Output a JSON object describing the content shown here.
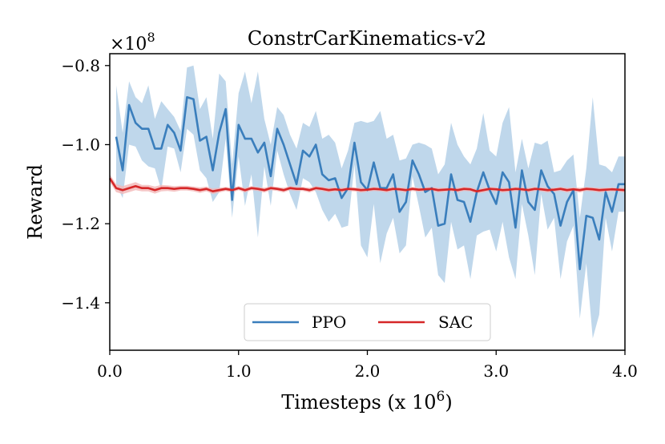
{
  "chart_data": {
    "type": "line",
    "title": "ConstrCarKinematics-v2",
    "xlabel": "Timesteps (x 10",
    "xlabel_sup": "6",
    "xlabel_close": ")",
    "ylabel": "Reward",
    "y_multiplier": "×10",
    "y_multiplier_exp": "8",
    "xlim": [
      0.0,
      4.0
    ],
    "ylim": [
      -1.52,
      -0.77
    ],
    "xticks": [
      0.0,
      1.0,
      2.0,
      3.0,
      4.0
    ],
    "xtick_labels": [
      "0.0",
      "1.0",
      "2.0",
      "3.0",
      "4.0"
    ],
    "yticks": [
      -0.8,
      -1.0,
      -1.2,
      -1.4
    ],
    "ytick_labels": [
      "−0.8",
      "−1.0",
      "−1.2",
      "−1.4"
    ],
    "grid": false,
    "legend_position": "bottom-center",
    "series": [
      {
        "name": "PPO",
        "color": "#3a7ebc",
        "band_color": "#bcd5ea",
        "x": [
          0.05,
          0.1,
          0.15,
          0.2,
          0.25,
          0.3,
          0.35,
          0.4,
          0.45,
          0.5,
          0.55,
          0.6,
          0.65,
          0.7,
          0.75,
          0.8,
          0.85,
          0.9,
          0.95,
          1.0,
          1.05,
          1.1,
          1.15,
          1.2,
          1.25,
          1.3,
          1.35,
          1.4,
          1.45,
          1.5,
          1.55,
          1.6,
          1.65,
          1.7,
          1.75,
          1.8,
          1.85,
          1.9,
          1.95,
          2.0,
          2.05,
          2.1,
          2.15,
          2.2,
          2.25,
          2.3,
          2.35,
          2.4,
          2.45,
          2.5,
          2.55,
          2.6,
          2.65,
          2.7,
          2.75,
          2.8,
          2.85,
          2.9,
          2.95,
          3.0,
          3.05,
          3.1,
          3.15,
          3.2,
          3.25,
          3.3,
          3.35,
          3.4,
          3.45,
          3.5,
          3.55,
          3.6,
          3.65,
          3.7,
          3.75,
          3.8,
          3.85,
          3.9,
          3.95,
          4.0
        ],
        "y": [
          -0.98,
          -1.065,
          -0.9,
          -0.945,
          -0.96,
          -0.96,
          -1.01,
          -1.01,
          -0.95,
          -0.97,
          -1.015,
          -0.88,
          -0.885,
          -0.99,
          -0.98,
          -1.065,
          -0.97,
          -0.91,
          -1.14,
          -0.95,
          -0.985,
          -0.985,
          -1.02,
          -0.995,
          -1.08,
          -0.96,
          -1.0,
          -1.05,
          -1.1,
          -1.015,
          -1.03,
          -1.0,
          -1.075,
          -1.09,
          -1.085,
          -1.135,
          -1.11,
          -0.995,
          -1.095,
          -1.115,
          -1.045,
          -1.11,
          -1.11,
          -1.075,
          -1.17,
          -1.145,
          -1.04,
          -1.075,
          -1.12,
          -1.11,
          -1.205,
          -1.2,
          -1.075,
          -1.14,
          -1.145,
          -1.195,
          -1.12,
          -1.07,
          -1.115,
          -1.15,
          -1.07,
          -1.095,
          -1.21,
          -1.065,
          -1.145,
          -1.165,
          -1.065,
          -1.105,
          -1.125,
          -1.205,
          -1.145,
          -1.115,
          -1.315,
          -1.18,
          -1.185,
          -1.24,
          -1.12,
          -1.17,
          -1.1,
          -1.1
        ],
        "upper": [
          -0.85,
          -0.97,
          -0.84,
          -0.88,
          -0.895,
          -0.85,
          -0.935,
          -0.89,
          -0.91,
          -0.93,
          -0.965,
          -0.805,
          -0.8,
          -0.91,
          -0.88,
          -0.985,
          -0.82,
          -0.84,
          -1.05,
          -0.87,
          -0.815,
          -0.895,
          -0.815,
          -0.935,
          -1.0,
          -0.905,
          -0.925,
          -0.975,
          -1.01,
          -0.945,
          -0.955,
          -0.915,
          -0.985,
          -0.975,
          -0.995,
          -1.06,
          -1.015,
          -0.945,
          -0.94,
          -0.945,
          -0.94,
          -0.915,
          -0.985,
          -0.975,
          -1.04,
          -1.035,
          -1.0,
          -0.995,
          -1.0,
          -1.01,
          -1.075,
          -1.05,
          -0.945,
          -1.0,
          -1.03,
          -1.05,
          -1.01,
          -0.92,
          -1.015,
          -1.03,
          -0.945,
          -0.905,
          -1.07,
          -0.985,
          -1.06,
          -0.995,
          -1.0,
          -0.99,
          -1.07,
          -1.065,
          -1.04,
          -1.025,
          -1.185,
          -1.06,
          -0.88,
          -1.05,
          -1.055,
          -1.07,
          -1.03,
          -1.03
        ],
        "lower": [
          -1.1,
          -1.135,
          -1.0,
          -1.005,
          -1.04,
          -1.055,
          -1.06,
          -1.115,
          -1.005,
          -1.01,
          -1.07,
          -0.96,
          -0.975,
          -1.065,
          -1.085,
          -1.145,
          -1.12,
          -0.985,
          -1.185,
          -1.03,
          -1.155,
          -1.075,
          -1.235,
          -1.055,
          -1.155,
          -1.015,
          -1.075,
          -1.125,
          -1.165,
          -1.085,
          -1.095,
          -1.12,
          -1.165,
          -1.195,
          -1.175,
          -1.21,
          -1.205,
          -1.05,
          -1.255,
          -1.285,
          -1.15,
          -1.3,
          -1.225,
          -1.185,
          -1.275,
          -1.255,
          -1.08,
          -1.155,
          -1.235,
          -1.21,
          -1.33,
          -1.35,
          -1.195,
          -1.265,
          -1.255,
          -1.34,
          -1.23,
          -1.22,
          -1.215,
          -1.27,
          -1.195,
          -1.285,
          -1.34,
          -1.15,
          -1.23,
          -1.33,
          -1.125,
          -1.215,
          -1.185,
          -1.34,
          -1.245,
          -1.205,
          -1.44,
          -1.3,
          -1.49,
          -1.43,
          -1.185,
          -1.27,
          -1.17,
          -1.17
        ]
      },
      {
        "name": "SAC",
        "color": "#d62728",
        "band_color": "#f2b6b6",
        "x": [
          0.0,
          0.05,
          0.1,
          0.15,
          0.2,
          0.25,
          0.3,
          0.35,
          0.4,
          0.45,
          0.5,
          0.55,
          0.6,
          0.65,
          0.7,
          0.75,
          0.8,
          0.85,
          0.9,
          0.95,
          1.0,
          1.05,
          1.1,
          1.15,
          1.2,
          1.25,
          1.3,
          1.35,
          1.4,
          1.45,
          1.5,
          1.55,
          1.6,
          1.65,
          1.7,
          1.75,
          1.8,
          1.85,
          1.9,
          1.95,
          2.0,
          2.05,
          2.1,
          2.15,
          2.2,
          2.25,
          2.3,
          2.35,
          2.4,
          2.45,
          2.5,
          2.55,
          2.6,
          2.65,
          2.7,
          2.75,
          2.8,
          2.85,
          2.9,
          2.95,
          3.0,
          3.05,
          3.1,
          3.15,
          3.2,
          3.25,
          3.3,
          3.35,
          3.4,
          3.45,
          3.5,
          3.55,
          3.6,
          3.65,
          3.7,
          3.75,
          3.8,
          3.85,
          3.9,
          3.95,
          4.0
        ],
        "y": [
          -1.085,
          -1.11,
          -1.115,
          -1.11,
          -1.105,
          -1.11,
          -1.11,
          -1.115,
          -1.11,
          -1.11,
          -1.112,
          -1.11,
          -1.11,
          -1.112,
          -1.115,
          -1.112,
          -1.118,
          -1.115,
          -1.112,
          -1.115,
          -1.11,
          -1.115,
          -1.11,
          -1.112,
          -1.115,
          -1.11,
          -1.112,
          -1.115,
          -1.11,
          -1.112,
          -1.112,
          -1.115,
          -1.11,
          -1.112,
          -1.115,
          -1.113,
          -1.115,
          -1.112,
          -1.113,
          -1.115,
          -1.114,
          -1.112,
          -1.113,
          -1.115,
          -1.112,
          -1.113,
          -1.115,
          -1.112,
          -1.114,
          -1.113,
          -1.112,
          -1.115,
          -1.114,
          -1.113,
          -1.115,
          -1.112,
          -1.113,
          -1.118,
          -1.115,
          -1.112,
          -1.113,
          -1.115,
          -1.114,
          -1.112,
          -1.113,
          -1.115,
          -1.112,
          -1.113,
          -1.115,
          -1.114,
          -1.112,
          -1.115,
          -1.113,
          -1.115,
          -1.112,
          -1.113,
          -1.115,
          -1.114,
          -1.113,
          -1.114,
          -1.115
        ],
        "upper": [
          -1.075,
          -1.1,
          -1.105,
          -1.1,
          -1.095,
          -1.102,
          -1.102,
          -1.106,
          -1.102,
          -1.103,
          -1.105,
          -1.104,
          -1.104,
          -1.106,
          -1.108,
          -1.106,
          -1.111,
          -1.109,
          -1.107,
          -1.109,
          -1.105,
          -1.109,
          -1.105,
          -1.107,
          -1.109,
          -1.105,
          -1.107,
          -1.109,
          -1.105,
          -1.107,
          -1.107,
          -1.109,
          -1.105,
          -1.107,
          -1.109,
          -1.108,
          -1.109,
          -1.107,
          -1.108,
          -1.109,
          -1.109,
          -1.107,
          -1.108,
          -1.109,
          -1.107,
          -1.108,
          -1.109,
          -1.107,
          -1.109,
          -1.108,
          -1.107,
          -1.109,
          -1.109,
          -1.108,
          -1.109,
          -1.107,
          -1.108,
          -1.112,
          -1.109,
          -1.107,
          -1.108,
          -1.109,
          -1.109,
          -1.107,
          -1.108,
          -1.109,
          -1.107,
          -1.108,
          -1.109,
          -1.109,
          -1.107,
          -1.109,
          -1.108,
          -1.109,
          -1.107,
          -1.108,
          -1.109,
          -1.109,
          -1.108,
          -1.109,
          -1.109
        ],
        "lower": [
          -1.095,
          -1.12,
          -1.125,
          -1.12,
          -1.115,
          -1.118,
          -1.118,
          -1.124,
          -1.118,
          -1.117,
          -1.119,
          -1.116,
          -1.116,
          -1.118,
          -1.122,
          -1.118,
          -1.125,
          -1.121,
          -1.117,
          -1.121,
          -1.115,
          -1.121,
          -1.115,
          -1.117,
          -1.121,
          -1.115,
          -1.117,
          -1.121,
          -1.115,
          -1.117,
          -1.117,
          -1.121,
          -1.115,
          -1.117,
          -1.121,
          -1.118,
          -1.121,
          -1.117,
          -1.118,
          -1.121,
          -1.119,
          -1.117,
          -1.118,
          -1.121,
          -1.117,
          -1.118,
          -1.121,
          -1.117,
          -1.119,
          -1.118,
          -1.117,
          -1.121,
          -1.119,
          -1.118,
          -1.121,
          -1.117,
          -1.118,
          -1.124,
          -1.121,
          -1.117,
          -1.118,
          -1.121,
          -1.119,
          -1.117,
          -1.118,
          -1.121,
          -1.117,
          -1.118,
          -1.121,
          -1.119,
          -1.117,
          -1.121,
          -1.118,
          -1.121,
          -1.117,
          -1.118,
          -1.121,
          -1.119,
          -1.118,
          -1.119,
          -1.121
        ]
      }
    ]
  }
}
